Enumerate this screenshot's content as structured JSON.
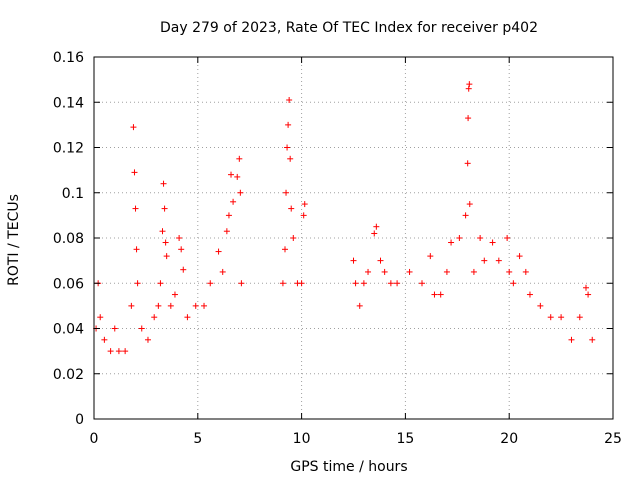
{
  "chart_data": {
    "type": "scatter",
    "title": "Day 279 of 2023, Rate Of TEC Index for receiver p402",
    "xlabel": "GPS time / hours",
    "ylabel": "ROTI / TECUs",
    "xlim": [
      0,
      25
    ],
    "ylim": [
      0,
      0.16
    ],
    "x_ticks": [
      "0",
      "5",
      "10",
      "15",
      "20",
      "25"
    ],
    "y_ticks": [
      "0",
      "0.02",
      "0.04",
      "0.06",
      "0.08",
      "0.1",
      "0.12",
      "0.14",
      "0.16"
    ],
    "grid": true,
    "marker": "+",
    "series": [
      {
        "color": "#ff0000",
        "points": [
          [
            0.1,
            0.04
          ],
          [
            0.2,
            0.06
          ],
          [
            0.3,
            0.045
          ],
          [
            0.5,
            0.035
          ],
          [
            0.8,
            0.03
          ],
          [
            1.0,
            0.04
          ],
          [
            1.2,
            0.03
          ],
          [
            1.5,
            0.03
          ],
          [
            1.8,
            0.05
          ],
          [
            1.9,
            0.129
          ],
          [
            1.95,
            0.109
          ],
          [
            2.0,
            0.093
          ],
          [
            2.05,
            0.075
          ],
          [
            2.1,
            0.06
          ],
          [
            2.3,
            0.04
          ],
          [
            2.6,
            0.035
          ],
          [
            2.9,
            0.045
          ],
          [
            3.1,
            0.05
          ],
          [
            3.2,
            0.06
          ],
          [
            3.3,
            0.083
          ],
          [
            3.35,
            0.104
          ],
          [
            3.4,
            0.093
          ],
          [
            3.45,
            0.078
          ],
          [
            3.5,
            0.072
          ],
          [
            3.7,
            0.05
          ],
          [
            3.9,
            0.055
          ],
          [
            4.1,
            0.08
          ],
          [
            4.2,
            0.075
          ],
          [
            4.3,
            0.066
          ],
          [
            4.5,
            0.045
          ],
          [
            4.9,
            0.05
          ],
          [
            5.3,
            0.05
          ],
          [
            5.6,
            0.06
          ],
          [
            6.0,
            0.074
          ],
          [
            6.2,
            0.065
          ],
          [
            6.4,
            0.083
          ],
          [
            6.5,
            0.09
          ],
          [
            6.6,
            0.108
          ],
          [
            6.7,
            0.096
          ],
          [
            6.9,
            0.107
          ],
          [
            7.0,
            0.115
          ],
          [
            7.05,
            0.1
          ],
          [
            7.1,
            0.06
          ],
          [
            9.1,
            0.06
          ],
          [
            9.2,
            0.075
          ],
          [
            9.25,
            0.1
          ],
          [
            9.3,
            0.12
          ],
          [
            9.35,
            0.13
          ],
          [
            9.4,
            0.141
          ],
          [
            9.45,
            0.115
          ],
          [
            9.5,
            0.093
          ],
          [
            9.6,
            0.08
          ],
          [
            9.8,
            0.06
          ],
          [
            10.0,
            0.06
          ],
          [
            10.1,
            0.09
          ],
          [
            10.15,
            0.095
          ],
          [
            12.5,
            0.07
          ],
          [
            12.6,
            0.06
          ],
          [
            12.8,
            0.05
          ],
          [
            13.0,
            0.06
          ],
          [
            13.2,
            0.065
          ],
          [
            13.5,
            0.082
          ],
          [
            13.6,
            0.085
          ],
          [
            13.8,
            0.07
          ],
          [
            14.0,
            0.065
          ],
          [
            14.3,
            0.06
          ],
          [
            14.6,
            0.06
          ],
          [
            15.2,
            0.065
          ],
          [
            15.8,
            0.06
          ],
          [
            16.2,
            0.072
          ],
          [
            16.4,
            0.055
          ],
          [
            16.7,
            0.055
          ],
          [
            17.0,
            0.065
          ],
          [
            17.2,
            0.078
          ],
          [
            17.6,
            0.08
          ],
          [
            17.9,
            0.09
          ],
          [
            18.0,
            0.113
          ],
          [
            18.02,
            0.133
          ],
          [
            18.05,
            0.146
          ],
          [
            18.08,
            0.148
          ],
          [
            18.1,
            0.095
          ],
          [
            18.3,
            0.065
          ],
          [
            18.6,
            0.08
          ],
          [
            18.8,
            0.07
          ],
          [
            19.2,
            0.078
          ],
          [
            19.5,
            0.07
          ],
          [
            19.9,
            0.08
          ],
          [
            20.0,
            0.065
          ],
          [
            20.2,
            0.06
          ],
          [
            20.5,
            0.072
          ],
          [
            20.8,
            0.065
          ],
          [
            21.0,
            0.055
          ],
          [
            21.5,
            0.05
          ],
          [
            22.0,
            0.045
          ],
          [
            22.5,
            0.045
          ],
          [
            23.0,
            0.035
          ],
          [
            23.4,
            0.045
          ],
          [
            23.7,
            0.058
          ],
          [
            23.8,
            0.055
          ],
          [
            24.0,
            0.035
          ]
        ]
      }
    ]
  }
}
